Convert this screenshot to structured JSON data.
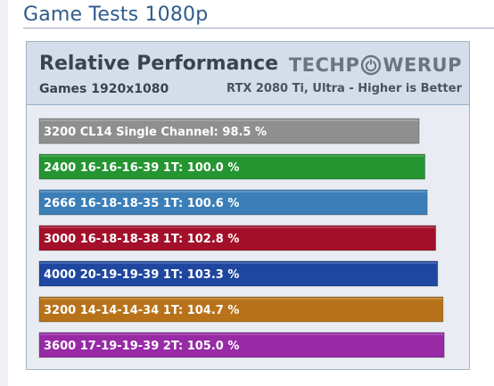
{
  "page": {
    "section_title": "Game Tests 1080p"
  },
  "header": {
    "logo_left": "TECHP",
    "logo_right": "WERUP",
    "note": "RTX 2080 Ti, Ultra - Higher is Better"
  },
  "colors": {
    "gray": "#8f8f8f",
    "green": "#259532",
    "blue": "#3c7fb8",
    "red": "#a3102a",
    "navy": "#1f47a0",
    "orange": "#b8731a",
    "purple": "#982aa6"
  },
  "chart_data": {
    "type": "bar",
    "orientation": "horizontal",
    "title": "Relative Performance",
    "subtitle": "Games 1920x1080",
    "unit": "%",
    "categories": [
      "3200 CL14 Single Channel",
      "2400 16-16-16-39 1T",
      "2666 16-18-18-35 1T",
      "3000 16-18-18-38 1T",
      "4000 20-19-19-39 1T",
      "3200 14-14-14-34 1T",
      "3600 17-19-19-39 2T"
    ],
    "values": [
      98.5,
      100.0,
      100.6,
      102.8,
      103.3,
      104.7,
      105.0
    ],
    "labels": [
      "3200 CL14 Single Channel: 98.5 %",
      "2400 16-16-16-39 1T: 100.0 %",
      "2666 16-18-18-35 1T: 100.6 %",
      "3000 16-18-18-38 1T: 102.8 %",
      "4000 20-19-19-39 1T: 103.3 %",
      "3200 14-14-14-34 1T: 104.7 %",
      "3600 17-19-19-39 2T: 105.0 %"
    ],
    "bar_colors": [
      "#8f8f8f",
      "#259532",
      "#3c7fb8",
      "#a3102a",
      "#1f47a0",
      "#b8731a",
      "#982aa6"
    ],
    "xlim": [
      0,
      108.2
    ],
    "grid": false,
    "legend": "none"
  }
}
